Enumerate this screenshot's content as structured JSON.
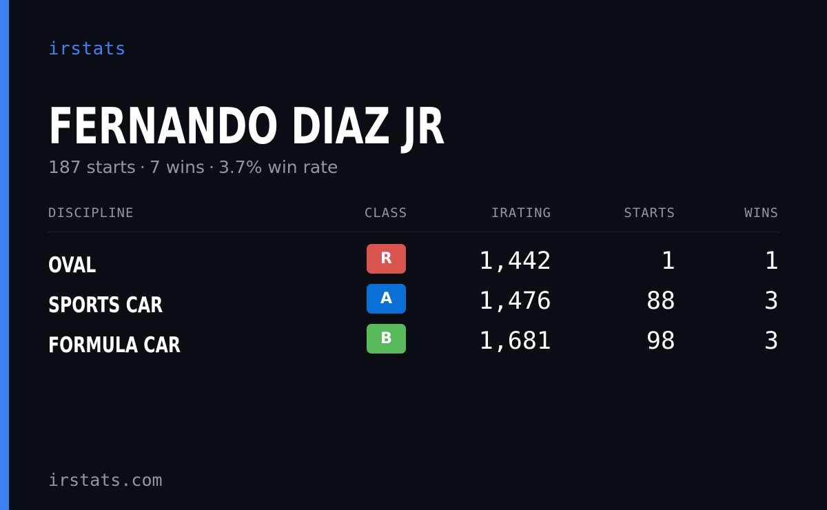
{
  "brand": "irstats",
  "player": {
    "name": "FERNANDO DIAZ JR"
  },
  "summary": {
    "starts": "187 starts",
    "wins": "7 wins",
    "win_rate": "3.7% win rate",
    "separator": "·"
  },
  "table": {
    "headers": {
      "discipline": "DISCIPLINE",
      "class": "CLASS",
      "irating": "IRATING",
      "starts": "STARTS",
      "wins": "WINS"
    },
    "rows": [
      {
        "discipline": "OVAL",
        "class": "R",
        "class_color": "#d9534f",
        "irating": "1,442",
        "starts": "1",
        "wins": "1"
      },
      {
        "discipline": "SPORTS CAR",
        "class": "A",
        "class_color": "#0b6fd6",
        "irating": "1,476",
        "starts": "88",
        "wins": "3"
      },
      {
        "discipline": "FORMULA CAR",
        "class": "B",
        "class_color": "#57b85c",
        "irating": "1,681",
        "starts": "98",
        "wins": "3"
      }
    ]
  },
  "footer": "irstats.com",
  "colors": {
    "background": "#0b0d14",
    "accent": "#3d82f4",
    "muted_text": "#8f96a6",
    "text": "#ffffff"
  }
}
